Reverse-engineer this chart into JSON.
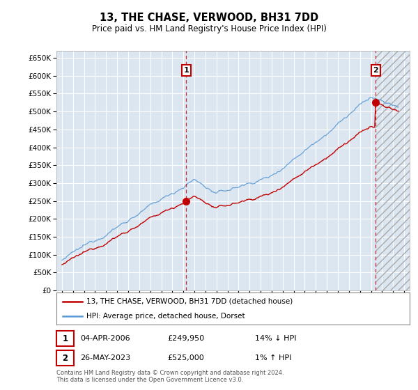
{
  "title": "13, THE CHASE, VERWOOD, BH31 7DD",
  "subtitle": "Price paid vs. HM Land Registry's House Price Index (HPI)",
  "legend_line1": "13, THE CHASE, VERWOOD, BH31 7DD (detached house)",
  "legend_line2": "HPI: Average price, detached house, Dorset",
  "transaction1_date": "04-APR-2006",
  "transaction1_price": "£249,950",
  "transaction1_hpi": "14% ↓ HPI",
  "transaction2_date": "26-MAY-2023",
  "transaction2_price": "£525,000",
  "transaction2_hpi": "1% ↑ HPI",
  "footnote": "Contains HM Land Registry data © Crown copyright and database right 2024.\nThis data is licensed under the Open Government Licence v3.0.",
  "hpi_color": "#5b9bd5",
  "price_color": "#c00000",
  "vline_color": "#c00000",
  "background_color": "#ffffff",
  "plot_bg_color": "#dce6f1",
  "grid_color": "#ffffff",
  "ylim_min": 0,
  "ylim_max": 670000,
  "ytick_step": 50000,
  "x_start_year": 1995,
  "x_end_year": 2026,
  "transaction1_year": 2006.25,
  "transaction2_year": 2023.42,
  "price_t1": 249950,
  "price_t2": 525000
}
